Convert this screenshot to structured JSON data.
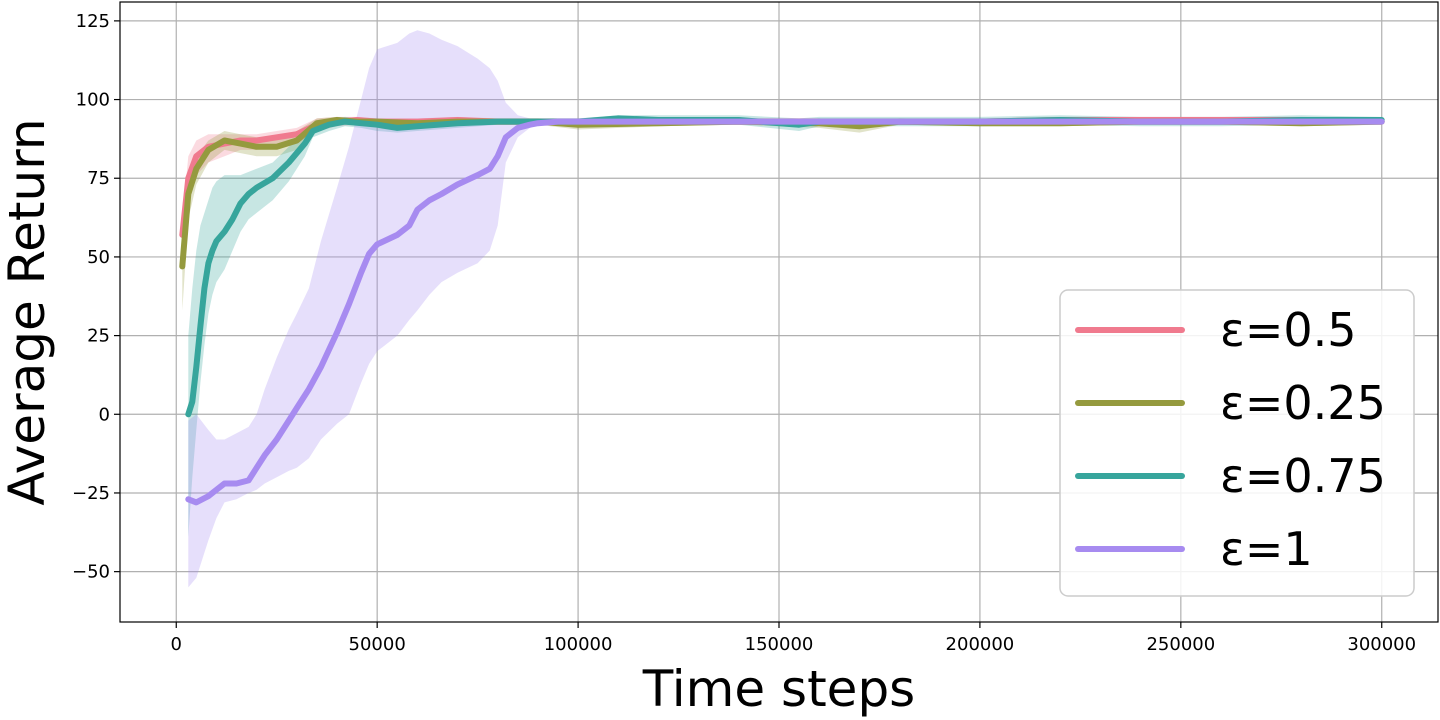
{
  "chart_data": {
    "type": "line",
    "title": "",
    "xlabel": "Time steps",
    "ylabel": "Average Return",
    "xlim": [
      -14000,
      314000
    ],
    "ylim": [
      -66,
      131
    ],
    "xticks": [
      0,
      50000,
      100000,
      150000,
      200000,
      250000,
      300000
    ],
    "xtick_labels": [
      "0",
      "50000",
      "100000",
      "150000",
      "200000",
      "250000",
      "300000"
    ],
    "yticks": [
      -50,
      -25,
      0,
      25,
      50,
      75,
      100,
      125
    ],
    "ytick_labels": [
      "−50",
      "−25",
      "0",
      "25",
      "50",
      "75",
      "100",
      "125"
    ],
    "grid": true,
    "legend_position": "bottom-right",
    "series": [
      {
        "name": "ε=0.5",
        "color": "#f07a8e",
        "x": [
          1500,
          3000,
          5000,
          8000,
          12000,
          16000,
          20000,
          25000,
          30000,
          35000,
          40000,
          45000,
          50000,
          60000,
          70000,
          80000,
          90000,
          100000,
          120000,
          140000,
          160000,
          180000,
          200000,
          220000,
          240000,
          260000,
          280000,
          300000
        ],
        "y": [
          57,
          75,
          82,
          85,
          86,
          87,
          87,
          88,
          89,
          92,
          93,
          93.5,
          93,
          93,
          93.5,
          93,
          93,
          93,
          93,
          93,
          93,
          93,
          93,
          93.5,
          93.5,
          93.5,
          93.5,
          93
        ],
        "lower": [
          52,
          68,
          76,
          80,
          82,
          84,
          84,
          85,
          86,
          90,
          91.5,
          92,
          92,
          92,
          92,
          92,
          92,
          92,
          92,
          92,
          92,
          92,
          92,
          92,
          92,
          92,
          92,
          92
        ],
        "upper": [
          62,
          82,
          87,
          89,
          89,
          89,
          89,
          90,
          91,
          94,
          94.5,
          94.5,
          94,
          94,
          94.5,
          94,
          94,
          94,
          94,
          94,
          94,
          94,
          94,
          94.5,
          94.5,
          94.5,
          94.5,
          94
        ]
      },
      {
        "name": "ε=0.25",
        "color": "#959a3e",
        "x": [
          1500,
          3000,
          5000,
          8000,
          12000,
          16000,
          20000,
          25000,
          30000,
          35000,
          40000,
          45000,
          50000,
          60000,
          70000,
          80000,
          90000,
          100000,
          120000,
          140000,
          160000,
          170000,
          180000,
          200000,
          220000,
          240000,
          260000,
          280000,
          300000
        ],
        "y": [
          47,
          70,
          78,
          84,
          87,
          86,
          85,
          85,
          87,
          92.5,
          93.5,
          93,
          93,
          92.5,
          93,
          93,
          93,
          92,
          92.5,
          93,
          92.5,
          91.5,
          93,
          92.5,
          92.5,
          93,
          93,
          92.5,
          93
        ],
        "lower": [
          33,
          62,
          73,
          80,
          84,
          83,
          82,
          82,
          84,
          90,
          92,
          92,
          92,
          91.5,
          92,
          92,
          92,
          90.5,
          91.5,
          92,
          91,
          89.5,
          92,
          91.5,
          91.5,
          92,
          92,
          91.5,
          92
        ],
        "upper": [
          58,
          76,
          82,
          87,
          90,
          89,
          88,
          88,
          90,
          94,
          94.5,
          94,
          94,
          93.5,
          94,
          94,
          94,
          93.5,
          93.5,
          94,
          94,
          93,
          94,
          93.5,
          93.5,
          94,
          94,
          93.5,
          94
        ]
      },
      {
        "name": "ε=0.75",
        "color": "#37a59c",
        "x": [
          3000,
          4000,
          5000,
          6000,
          7000,
          8000,
          9000,
          10000,
          12000,
          14000,
          16000,
          18000,
          20000,
          24000,
          28000,
          32000,
          34000,
          38000,
          42000,
          46000,
          50000,
          55000,
          60000,
          70000,
          80000,
          90000,
          100000,
          110000,
          120000,
          140000,
          155000,
          160000,
          180000,
          200000,
          220000,
          240000,
          260000,
          280000,
          300000
        ],
        "y": [
          0,
          4,
          15,
          28,
          40,
          48,
          52,
          55,
          58,
          62,
          67,
          70,
          72,
          75,
          80,
          86,
          90,
          92,
          93,
          92.5,
          92,
          91,
          91.5,
          92.5,
          93,
          93,
          93,
          94,
          93.5,
          93.5,
          92,
          93,
          93,
          93,
          93.5,
          93,
          93,
          93.5,
          93.5
        ],
        "lower": [
          -39,
          -20,
          -5,
          10,
          22,
          32,
          38,
          42,
          46,
          52,
          58,
          62,
          64,
          68,
          74,
          82,
          88,
          90,
          91.5,
          91,
          90,
          89.5,
          90,
          91,
          92,
          92,
          92,
          92.5,
          92,
          92,
          90,
          91.5,
          91.5,
          91.5,
          92,
          91.5,
          91.5,
          92,
          92.5
        ],
        "upper": [
          25,
          40,
          52,
          60,
          64,
          68,
          72,
          74,
          76,
          76,
          76,
          77,
          78,
          80,
          85,
          90,
          92,
          93.5,
          94.5,
          94,
          94,
          93,
          93,
          94,
          94,
          94,
          94,
          95,
          95,
          95,
          94,
          94.5,
          94.5,
          94.5,
          95,
          94.5,
          94.5,
          95,
          94.5
        ]
      },
      {
        "name": "ε=1",
        "color": "#a78bf0",
        "x": [
          3000,
          5000,
          8000,
          10000,
          12000,
          15000,
          18000,
          20000,
          22000,
          25000,
          28000,
          30000,
          33000,
          36000,
          40000,
          43000,
          46000,
          48000,
          50000,
          55000,
          58000,
          60000,
          63000,
          66000,
          70000,
          75000,
          78000,
          80000,
          82000,
          85000,
          88000,
          90000,
          95000,
          100000,
          120000,
          140000,
          160000,
          180000,
          200000,
          220000,
          240000,
          260000,
          280000,
          300000
        ],
        "y": [
          -27,
          -28,
          -26,
          -24,
          -22,
          -22,
          -21,
          -17,
          -13,
          -8,
          -2,
          2,
          8,
          15,
          26,
          35,
          45,
          51,
          54,
          57,
          60,
          65,
          68,
          70,
          73,
          76,
          78,
          82,
          88,
          91,
          92,
          92.5,
          93,
          93,
          93,
          93,
          93,
          93,
          93,
          93,
          93,
          93,
          93,
          93
        ],
        "lower": [
          -55,
          -52,
          -40,
          -33,
          -28,
          -27,
          -25,
          -24,
          -22,
          -20,
          -18,
          -17,
          -14,
          -8,
          -3,
          0,
          10,
          16,
          20,
          25,
          30,
          33,
          38,
          42,
          45,
          48,
          52,
          60,
          80,
          88,
          91,
          92,
          92,
          92,
          92,
          92,
          92,
          92,
          92,
          92,
          92,
          92,
          92,
          92
        ],
        "upper": [
          -2,
          0,
          -5,
          -8,
          -8,
          -6,
          -4,
          0,
          8,
          18,
          27,
          32,
          40,
          55,
          72,
          85,
          100,
          110,
          116,
          118,
          121,
          122,
          121,
          119,
          117,
          113,
          110,
          106,
          99,
          95,
          94,
          94,
          94,
          94,
          94,
          94,
          94,
          94,
          94,
          94,
          94,
          94,
          94,
          94
        ]
      }
    ]
  }
}
